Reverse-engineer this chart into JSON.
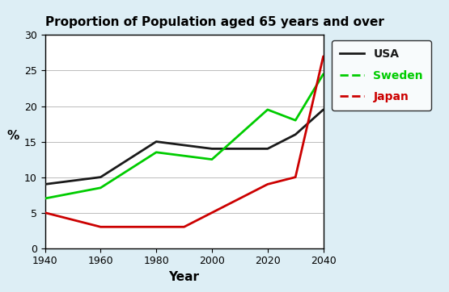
{
  "title": "Proportion of Population aged 65 years and over",
  "xlabel": "Year",
  "ylabel": "%",
  "years": [
    1940,
    1960,
    1980,
    1990,
    2000,
    2020,
    2030,
    2040
  ],
  "usa": [
    9,
    10,
    15,
    14.5,
    14,
    14,
    16,
    19.5
  ],
  "sweden": [
    7,
    8.5,
    13.5,
    13,
    12.5,
    19.5,
    18,
    24.5
  ],
  "japan": [
    5,
    3,
    3,
    3,
    5,
    9,
    10,
    27
  ],
  "usa_color": "#1a1a1a",
  "sweden_color": "#00cc00",
  "japan_color": "#cc0000",
  "ylim": [
    0,
    30
  ],
  "xlim": [
    1940,
    2040
  ],
  "yticks": [
    0,
    5,
    10,
    15,
    20,
    25,
    30
  ],
  "xticks": [
    1940,
    1960,
    1980,
    2000,
    2020,
    2040
  ],
  "background_outer": "#ddeef5",
  "background_inner": "#ffffff",
  "legend_labels": [
    "USA",
    "Sweden",
    "Japan"
  ],
  "legend_colors": [
    "#1a1a1a",
    "#00cc00",
    "#cc0000"
  ],
  "title_fontsize": 11,
  "axis_label_fontsize": 11,
  "tick_fontsize": 9,
  "linewidth": 2.0
}
